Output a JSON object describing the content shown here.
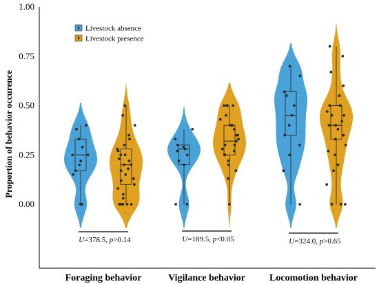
{
  "chart_data": {
    "type": "violin",
    "ylabel": "Proportion of behavior occurence",
    "ylim": [
      0,
      1
    ],
    "yticks": [
      "0.00",
      "0.25",
      "0.50",
      "0.75",
      "1.00"
    ],
    "categories": [
      "Foraging behavior",
      "Vigilance behavior",
      "Locomotion behavior"
    ],
    "legend_position": "top-left",
    "series": [
      {
        "name": "Livestock absence",
        "color": "#4aa3d8",
        "groups": [
          {
            "category": "Foraging behavior",
            "box": {
              "min": 0.0,
              "q1": 0.17,
              "median": 0.25,
              "q3": 0.33,
              "max": 0.4
            },
            "values": [
              0.0,
              0.0,
              0.15,
              0.17,
              0.2,
              0.22,
              0.25,
              0.25,
              0.29,
              0.33,
              0.38,
              0.4
            ]
          },
          {
            "category": "Vigilance behavior",
            "box": {
              "min": 0.0,
              "q1": 0.2,
              "median": 0.28,
              "q3": 0.3,
              "max": 0.38
            },
            "values": [
              0.0,
              0.0,
              0.2,
              0.22,
              0.25,
              0.27,
              0.28,
              0.29,
              0.3,
              0.33,
              0.38
            ]
          },
          {
            "category": "Locomotion behavior",
            "box": {
              "min": 0.0,
              "q1": 0.35,
              "median": 0.45,
              "q3": 0.57,
              "max": 0.7
            },
            "values": [
              0.0,
              0.17,
              0.25,
              0.3,
              0.35,
              0.4,
              0.45,
              0.5,
              0.55,
              0.57,
              0.65,
              0.7
            ]
          }
        ]
      },
      {
        "name": "Livestock presence",
        "color": "#e0a020",
        "groups": [
          {
            "category": "Foraging behavior",
            "box": {
              "min": 0.0,
              "q1": 0.1,
              "median": 0.2,
              "q3": 0.28,
              "max": 0.5
            },
            "values": [
              0.0,
              0.0,
              0.0,
              0.0,
              0.0,
              0.03,
              0.05,
              0.08,
              0.1,
              0.12,
              0.13,
              0.15,
              0.17,
              0.18,
              0.2,
              0.2,
              0.22,
              0.23,
              0.25,
              0.25,
              0.27,
              0.28,
              0.3,
              0.33,
              0.35,
              0.4,
              0.45,
              0.5
            ]
          },
          {
            "category": "Vigilance behavior",
            "box": {
              "min": 0.0,
              "q1": 0.25,
              "median": 0.32,
              "q3": 0.4,
              "max": 0.5
            },
            "values": [
              0.0,
              0.13,
              0.17,
              0.2,
              0.22,
              0.25,
              0.25,
              0.27,
              0.28,
              0.3,
              0.3,
              0.32,
              0.33,
              0.35,
              0.35,
              0.38,
              0.4,
              0.4,
              0.43,
              0.45,
              0.5,
              0.5,
              0.5,
              0.5
            ]
          },
          {
            "category": "Locomotion behavior",
            "box": {
              "min": 0.0,
              "q1": 0.33,
              "median": 0.4,
              "q3": 0.5,
              "max": 0.8
            },
            "values": [
              0.0,
              0.0,
              0.0,
              0.1,
              0.17,
              0.2,
              0.25,
              0.27,
              0.3,
              0.33,
              0.35,
              0.38,
              0.4,
              0.4,
              0.42,
              0.45,
              0.45,
              0.47,
              0.5,
              0.5,
              0.5,
              0.55,
              0.6,
              0.67,
              0.75,
              0.8
            ]
          }
        ]
      }
    ],
    "annotations": [
      {
        "category": "Foraging behavior",
        "label": "U",
        "text": "=378.5,  ",
        "plabel": "p",
        "ptext": ">0.14"
      },
      {
        "category": "Vigilance behavior",
        "label": "U",
        "text": "=189.5, ",
        "plabel": "p",
        "ptext": "<0.05"
      },
      {
        "category": "Locomotion behavior",
        "label": "U",
        "text": "=324.0,  ",
        "plabel": "p",
        "ptext": ">0.65"
      }
    ]
  }
}
